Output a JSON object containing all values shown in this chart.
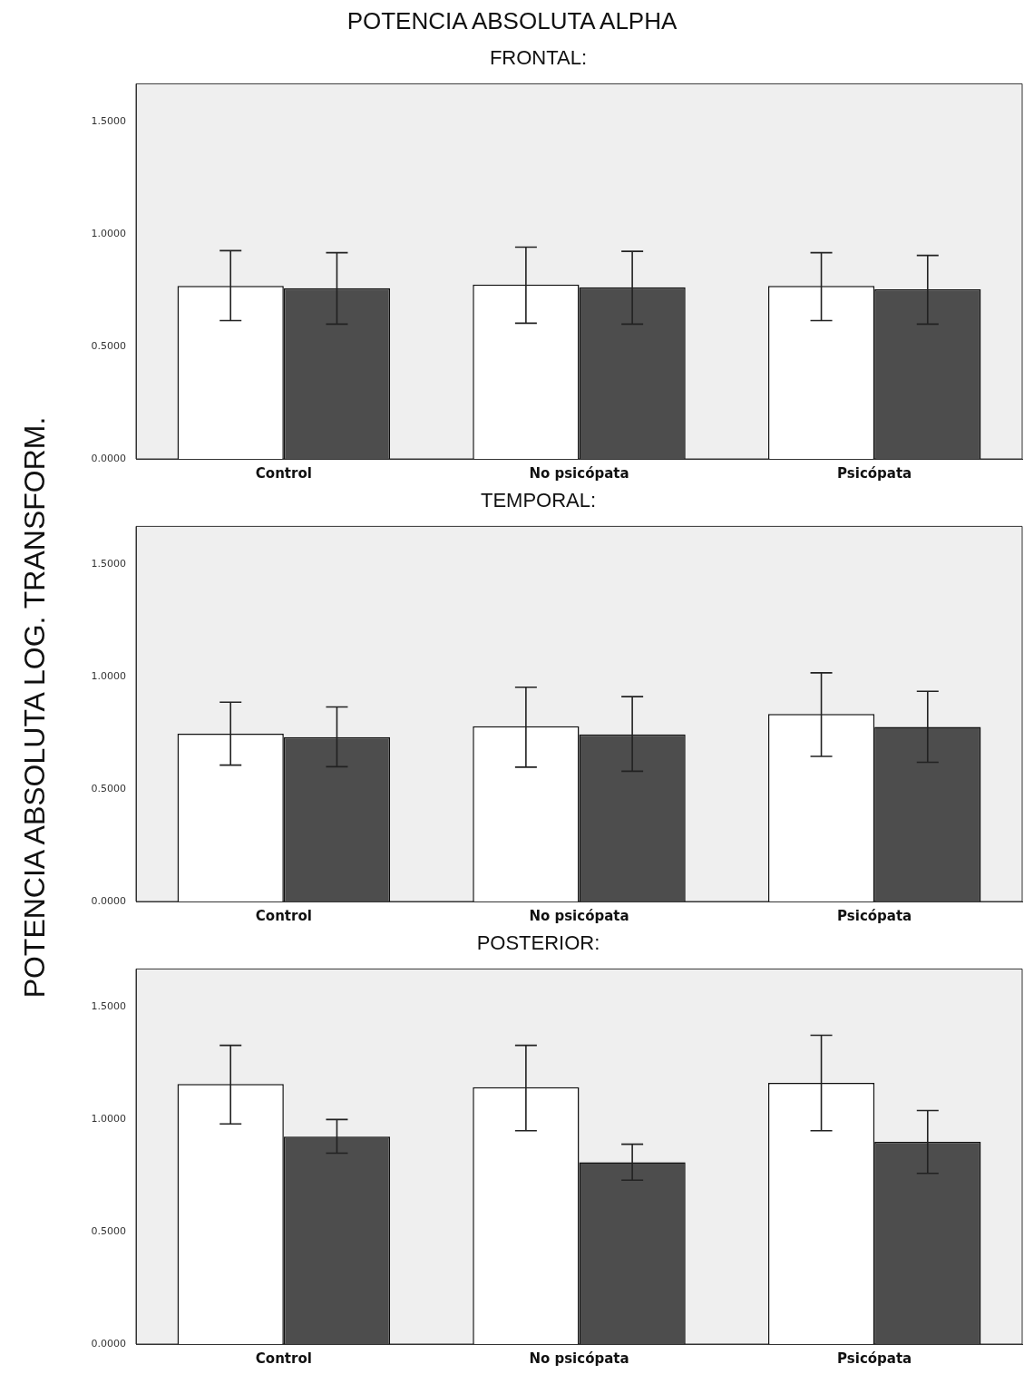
{
  "chart_data": [
    {
      "type": "bar",
      "title": "POTENCIA ABSOLUTA ALPHA",
      "subtitle": "FRONTAL:",
      "ylabel": "POTENCIA ABSOLUTA LOG. TRANSFORM.",
      "categories": [
        "Control",
        "No psicópata",
        "Psicópata"
      ],
      "series": [
        {
          "color": "#ffffff",
          "values": [
            0.77,
            0.776,
            0.77
          ],
          "errors": [
            [
              0.616,
              0.927
            ],
            [
              0.604,
              0.943
            ],
            [
              0.616,
              0.918
            ]
          ]
        },
        {
          "color": "#4d4d4d",
          "values": [
            0.76,
            0.764,
            0.755
          ],
          "errors": [
            [
              0.6,
              0.918
            ],
            [
              0.6,
              0.924
            ],
            [
              0.6,
              0.906
            ]
          ]
        }
      ],
      "ylim": [
        0,
        1.67
      ],
      "yticks": [
        {
          "value": 0,
          "label": "0.0000"
        },
        {
          "value": 0.5,
          "label": "0.5000"
        },
        {
          "value": 1,
          "label": "1.0000"
        },
        {
          "value": 1.5,
          "label": "1.5000"
        }
      ],
      "legend": false
    },
    {
      "type": "bar",
      "title": "TEMPORAL:",
      "categories": [
        "Control",
        "No psicópata",
        "Psicópata"
      ],
      "series": [
        {
          "color": "#ffffff",
          "values": [
            0.747,
            0.78,
            0.835
          ],
          "errors": [
            [
              0.607,
              0.887
            ],
            [
              0.598,
              0.954
            ],
            [
              0.646,
              1.018
            ]
          ]
        },
        {
          "color": "#4d4d4d",
          "values": [
            0.732,
            0.744,
            0.777
          ],
          "errors": [
            [
              0.6,
              0.866
            ],
            [
              0.58,
              0.912
            ],
            [
              0.62,
              0.936
            ]
          ]
        }
      ],
      "ylim": [
        0,
        1.67
      ],
      "yticks": [
        {
          "value": 0,
          "label": "0.0000"
        },
        {
          "value": 0.5,
          "label": "0.5000"
        },
        {
          "value": 1,
          "label": "1.0000"
        },
        {
          "value": 1.5,
          "label": "1.5000"
        }
      ],
      "legend": false
    },
    {
      "type": "bar",
      "title": "POSTERIOR:",
      "categories": [
        "Control",
        "No psicópata",
        "Psicópata"
      ],
      "series": [
        {
          "color": "#ffffff",
          "values": [
            1.158,
            1.144,
            1.163
          ],
          "errors": [
            [
              0.98,
              1.33
            ],
            [
              0.95,
              1.33
            ],
            [
              0.95,
              1.375
            ]
          ]
        },
        {
          "color": "#4d4d4d",
          "values": [
            0.924,
            0.81,
            0.9
          ],
          "errors": [
            [
              0.85,
              1.0
            ],
            [
              0.73,
              0.89
            ],
            [
              0.76,
              1.04
            ]
          ]
        }
      ],
      "ylim": [
        0,
        1.67
      ],
      "yticks": [
        {
          "value": 0,
          "label": "0.0000"
        },
        {
          "value": 0.5,
          "label": "0.5000"
        },
        {
          "value": 1,
          "label": "1.0000"
        },
        {
          "value": 1.5,
          "label": "1.5000"
        }
      ],
      "legend": false
    }
  ]
}
